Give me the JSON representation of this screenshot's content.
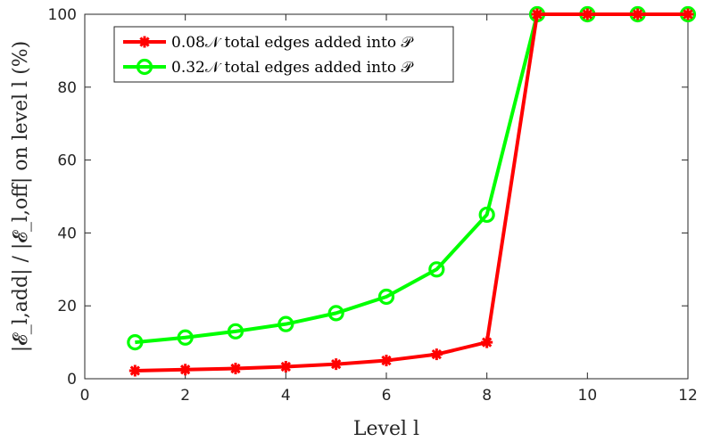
{
  "chart_data": {
    "type": "line",
    "xlabel": "Level l",
    "ylabel": "|𝓔_l,add| / |𝓔_l,off| on level l (%)",
    "xlim": [
      0,
      12
    ],
    "ylim": [
      0,
      100
    ],
    "xticks": [
      0,
      2,
      4,
      6,
      8,
      10,
      12
    ],
    "yticks": [
      0,
      20,
      40,
      60,
      80,
      100
    ],
    "grid": false,
    "legend_position": "top-left",
    "x": [
      1,
      2,
      3,
      4,
      5,
      6,
      7,
      8,
      9,
      10,
      11,
      12
    ],
    "series": [
      {
        "name": "0.08𝒩 total edges added into 𝒫",
        "color": "#ff0000",
        "marker": "asterisk",
        "values": [
          2.2,
          2.5,
          2.8,
          3.3,
          4.0,
          5.0,
          6.7,
          10.0,
          100,
          100,
          100,
          100
        ]
      },
      {
        "name": "0.32𝒩 total edges added into 𝒫",
        "color": "#00ff00",
        "marker": "circle",
        "values": [
          10.0,
          11.3,
          13.0,
          15.0,
          18.0,
          22.5,
          30.0,
          45.0,
          100,
          100,
          100,
          100
        ]
      }
    ]
  }
}
